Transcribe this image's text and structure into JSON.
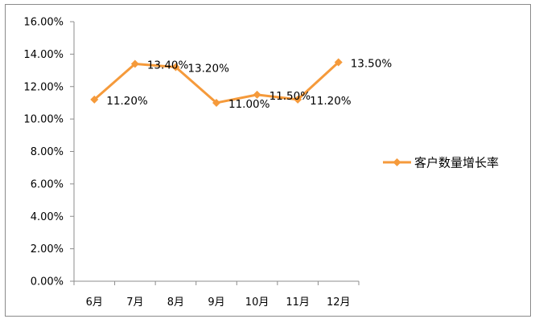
{
  "chart_data": {
    "type": "line",
    "title": "",
    "xlabel": "",
    "ylabel": "",
    "categories": [
      "6月",
      "7月",
      "8月",
      "9月",
      "10月",
      "11月",
      "12月"
    ],
    "series": [
      {
        "name": "客户数量增长率",
        "values": [
          11.2,
          13.4,
          13.2,
          11.0,
          11.5,
          11.2,
          13.5
        ],
        "data_labels": [
          "11.20%",
          "13.40%",
          "13.20%",
          "11.00%",
          "11.50%",
          "11.20%",
          "13.50%"
        ],
        "color": "#f59a3b",
        "marker": "diamond"
      }
    ],
    "ylim": [
      0,
      16
    ],
    "yticks": [
      0,
      2,
      4,
      6,
      8,
      10,
      12,
      14,
      16
    ],
    "ytick_labels": [
      "0.00%",
      "2.00%",
      "4.00%",
      "6.00%",
      "8.00%",
      "10.00%",
      "12.00%",
      "14.00%",
      "16.00%"
    ],
    "grid": false,
    "legend_position": "right"
  }
}
